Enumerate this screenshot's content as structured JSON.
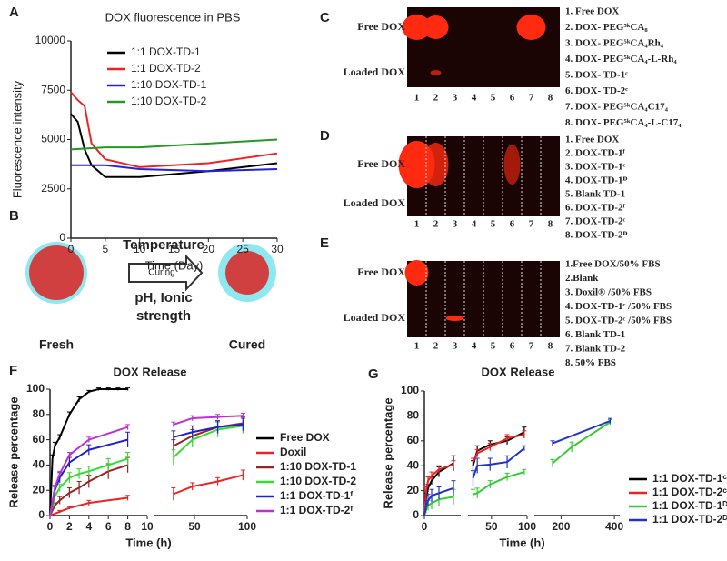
{
  "chart_data": [
    {
      "panel": "A",
      "type": "line",
      "title": "DOX fluorescence in PBS",
      "xlabel": "Time (Day)",
      "ylabel": "Fluorescence intensity",
      "xlim": [
        0,
        30
      ],
      "xticks": [
        0,
        5,
        10,
        15,
        20,
        25,
        30
      ],
      "ylim": [
        0,
        10000
      ],
      "yticks": [
        0,
        2500,
        5000,
        7500,
        10000
      ],
      "legend": "upper right",
      "series": [
        {
          "name": "1:1 DOX-TD-1",
          "color": "#000000",
          "x": [
            0,
            1,
            2,
            3,
            5,
            10,
            20,
            30
          ],
          "values": [
            6300,
            5900,
            4500,
            3700,
            3100,
            3100,
            3400,
            3800
          ]
        },
        {
          "name": "1:1 DOX-TD-2",
          "color": "#ee2222",
          "x": [
            0,
            1,
            2,
            3,
            5,
            10,
            20,
            30
          ],
          "values": [
            7400,
            7000,
            6700,
            4800,
            4000,
            3600,
            3800,
            4300
          ]
        },
        {
          "name": "1:10 DOX-TD-1",
          "color": "#2222dd",
          "x": [
            0,
            1,
            2,
            3,
            5,
            10,
            20,
            30
          ],
          "values": [
            3700,
            3700,
            3700,
            3700,
            3700,
            3500,
            3400,
            3500
          ]
        },
        {
          "name": "1:10 DOX-TD-2",
          "color": "#229922",
          "x": [
            0,
            5,
            10,
            20,
            30
          ],
          "values": [
            4500,
            4600,
            4600,
            4800,
            5000
          ]
        }
      ]
    },
    {
      "panel": "F",
      "type": "line",
      "title": "DOX Release",
      "xlabel": "Time (h)",
      "ylabel": "Release percentage",
      "x_segments": [
        {
          "xlim": [
            0,
            10
          ],
          "xticks": [
            0,
            2,
            4,
            6,
            8,
            10
          ]
        },
        {
          "xlim": [
            12,
            100
          ],
          "xticks": [
            50,
            100
          ]
        }
      ],
      "ylim": [
        0,
        100
      ],
      "yticks": [
        0,
        20,
        40,
        60,
        80,
        100
      ],
      "legend": "right",
      "series": [
        {
          "name": "Free DOX",
          "color": "#000000",
          "x": [
            0,
            0.25,
            0.5,
            1,
            2,
            3,
            4,
            5,
            6,
            7,
            8
          ],
          "values": [
            0,
            45,
            55,
            62,
            80,
            92,
            98,
            100,
            100,
            100,
            100
          ],
          "errors": [
            0,
            3,
            3,
            2,
            2,
            2,
            1,
            1,
            1,
            1,
            1
          ]
        },
        {
          "name": "Doxil",
          "color": "#ee2222",
          "x": [
            0,
            1,
            2,
            4,
            8,
            30,
            48,
            72,
            96
          ],
          "values": [
            0,
            3,
            6,
            10,
            14,
            17,
            23,
            27,
            32
          ],
          "errors": [
            0,
            1,
            1,
            2,
            2,
            5,
            3,
            3,
            4
          ]
        },
        {
          "name": "1:10 DOX-TD-1",
          "color": "#992222",
          "x": [
            0,
            0.5,
            1,
            2,
            3,
            4,
            6,
            8,
            30,
            48,
            72,
            96
          ],
          "values": [
            0,
            8,
            12,
            18,
            22,
            27,
            35,
            40,
            55,
            63,
            70,
            73
          ],
          "errors": [
            0,
            2,
            3,
            4,
            5,
            5,
            6,
            6,
            5,
            5,
            5,
            5
          ]
        },
        {
          "name": "1:10 DOX-TD-2",
          "color": "#33dd33",
          "x": [
            0,
            0.5,
            1,
            2,
            3,
            4,
            6,
            8,
            30,
            48,
            72,
            96
          ],
          "values": [
            0,
            15,
            22,
            30,
            33,
            35,
            40,
            45,
            46,
            60,
            68,
            71
          ],
          "errors": [
            0,
            3,
            3,
            4,
            4,
            4,
            5,
            5,
            6,
            6,
            6,
            6
          ]
        },
        {
          "name": "1:1 DOX-TD-1ᶠ",
          "color": "#2222cc",
          "x": [
            0,
            0.5,
            1,
            2,
            4,
            8,
            30,
            48,
            72,
            96
          ],
          "values": [
            0,
            20,
            30,
            42,
            52,
            60,
            62,
            66,
            70,
            72
          ],
          "errors": [
            0,
            3,
            4,
            4,
            4,
            6,
            5,
            5,
            5,
            5
          ]
        },
        {
          "name": "1:1 DOX-TD-2ᶠ",
          "color": "#bb33cc",
          "x": [
            0,
            0.5,
            1,
            2,
            4,
            8,
            30,
            48,
            72,
            96
          ],
          "values": [
            0,
            22,
            33,
            48,
            60,
            70,
            72,
            77,
            78,
            79
          ],
          "errors": [
            0,
            2,
            2,
            2,
            2,
            2,
            2,
            2,
            2,
            2
          ]
        }
      ]
    },
    {
      "panel": "G",
      "type": "line",
      "title": "DOX Release",
      "xlabel": "Time (h)",
      "ylabel": "Release percentage",
      "x_segments": [
        {
          "xlim": [
            0,
            10
          ],
          "xticks": [
            0
          ]
        },
        {
          "xlim": [
            17,
            100
          ],
          "xticks": [
            50,
            100
          ]
        },
        {
          "xlim": [
            100,
            420
          ],
          "xticks": [
            200,
            400
          ]
        }
      ],
      "ylim": [
        0,
        100
      ],
      "yticks": [
        0,
        20,
        40,
        60,
        80,
        100
      ],
      "legend": "right",
      "series": [
        {
          "name": "1:1 DOX-TD-1ᶜ",
          "color": "#000000",
          "x": [
            0,
            0.5,
            1,
            2,
            4,
            8,
            24,
            30,
            48,
            72,
            96
          ],
          "values": [
            0,
            15,
            22,
            28,
            35,
            42,
            40,
            52,
            57,
            60,
            67
          ],
          "errors": [
            0,
            3,
            3,
            3,
            4,
            6,
            4,
            4,
            3,
            3,
            4
          ]
        },
        {
          "name": "1:1 DOX-TD-2ᶜ",
          "color": "#ee2222",
          "x": [
            0,
            0.5,
            1,
            2,
            4,
            8,
            24,
            30,
            48,
            72,
            96
          ],
          "values": [
            0,
            20,
            28,
            32,
            37,
            41,
            43,
            50,
            55,
            62,
            65
          ],
          "errors": [
            0,
            3,
            3,
            3,
            3,
            3,
            3,
            3,
            3,
            3,
            3
          ]
        },
        {
          "name": "1:1 DOX-TD-1ᴰ",
          "color": "#33cc33",
          "x": [
            0,
            0.5,
            1,
            2,
            4,
            8,
            24,
            30,
            48,
            72,
            96,
            168,
            240,
            384
          ],
          "values": [
            0,
            5,
            8,
            10,
            13,
            15,
            17,
            18,
            25,
            31,
            35,
            42,
            55,
            75
          ],
          "errors": [
            0,
            3,
            4,
            5,
            5,
            6,
            4,
            4,
            3,
            3,
            2,
            3,
            4,
            2
          ]
        },
        {
          "name": "1:1 DOX-TD-2ᴰ",
          "color": "#2233cc",
          "x": [
            0,
            0.5,
            1,
            2,
            4,
            8,
            24,
            30,
            48,
            72,
            96,
            168,
            384
          ],
          "values": [
            0,
            8,
            12,
            16,
            18,
            22,
            30,
            40,
            41,
            43,
            54,
            58,
            76
          ],
          "errors": [
            0,
            4,
            5,
            5,
            5,
            6,
            6,
            6,
            5,
            5,
            2,
            2,
            2
          ]
        }
      ]
    }
  ],
  "diagram": {
    "panel": "B",
    "temperature": "Temperature",
    "curing": "Curing",
    "ph": "pH, Ionic",
    "strength": "strength",
    "fresh": "Fresh",
    "cured": "Cured"
  },
  "gels": [
    {
      "panel": "C",
      "rows": [
        "Free DOX",
        "Loaded DOX"
      ],
      "lanes": [
        "1",
        "2",
        "3",
        "4",
        "5",
        "6",
        "7",
        "8"
      ],
      "legend": [
        "1. Free DOX",
        "2. DOX- PEG⁵ᵏCA₈",
        "3. DOX- PEG⁵ᵏCA₄Rh₄",
        "4. DOX- PEG⁵ᵏCA₄-L-Rh₄",
        "5. DOX- TD-1ᶜ",
        "6. DOX- TD-2ᶜ",
        "7. DOX- PEG⁵ᵏCA₄C17₄",
        "8. DOX- PEG⁵ᵏCA₄-L-C17₄"
      ]
    },
    {
      "panel": "D",
      "rows": [
        "Free DOX",
        "Loaded DOX"
      ],
      "lanes": [
        "1",
        "2",
        "3",
        "4",
        "5",
        "6",
        "7",
        "8"
      ],
      "legend": [
        "1. Free DOX",
        "2. DOX-TD-1ᶠ",
        "3. DOX-TD-1ᶜ",
        "4. DOX-TD-1ᴰ",
        "5. Blank TD-1",
        "6. DOX-TD-2ᶠ",
        "7. DOX-TD-2ᶜ",
        "8. DOX-TD-2ᴰ"
      ]
    },
    {
      "panel": "E",
      "rows": [
        "Free DOX",
        "Loaded DOX"
      ],
      "lanes": [
        "1",
        "2",
        "3",
        "4",
        "5",
        "6",
        "7",
        "8"
      ],
      "legend": [
        "1.Free DOX/50% FBS",
        "2.Blank",
        "3. Doxil® /50% FBS",
        "4. DOX-TD-1ᶜ /50% FBS",
        "5. DOX-TD-2ᶜ /50% FBS",
        "6. Blank TD-1",
        "7. Blank TD-2",
        "8. 50% FBS"
      ]
    }
  ]
}
